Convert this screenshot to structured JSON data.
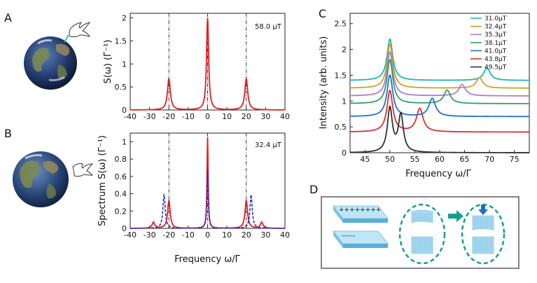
{
  "panels": {
    "A": {
      "letter": "A",
      "field_label": "58.0 μT"
    },
    "B": {
      "letter": "B",
      "field_label": "32.4 μT"
    },
    "C": {
      "letter": "C"
    },
    "D": {
      "letter": "D"
    }
  },
  "chart_data": [
    {
      "panel": "A",
      "type": "line",
      "title": "",
      "xlabel": "",
      "ylabel": "S(ω) (Γ⁻¹)",
      "xlim": [
        -40,
        40
      ],
      "ylim": [
        0,
        2.1
      ],
      "xticks": [
        -40,
        -30,
        -20,
        -10,
        0,
        10,
        20,
        30,
        40
      ],
      "yticks": [
        0,
        0.5,
        1,
        1.5,
        2
      ],
      "ytick_labels": [
        "0",
        "0.5",
        "1",
        "1.5",
        "2"
      ],
      "series": [
        {
          "name": "spectrum",
          "color": "#e02020",
          "peaks": [
            {
              "x0": -20,
              "h": 0.68,
              "w": 0.9
            },
            {
              "x0": 0,
              "h": 2.0,
              "w": 0.65
            },
            {
              "x0": 20,
              "h": 0.68,
              "w": 0.9
            }
          ]
        }
      ],
      "vlines": [
        -20,
        0,
        20
      ]
    },
    {
      "panel": "B",
      "type": "line",
      "title": "",
      "xlabel": "Frequency ω/Γ",
      "ylabel": "Spectrum S(ω) (Γ⁻¹)",
      "xlim": [
        -40,
        40
      ],
      "ylim": [
        0,
        1.1
      ],
      "xticks": [
        -40,
        -30,
        -20,
        -10,
        0,
        10,
        20,
        30,
        40
      ],
      "yticks": [
        0,
        0.2,
        0.4,
        0.6,
        0.8,
        1
      ],
      "ytick_labels": [
        "0",
        "0.2",
        "0.4",
        "0.6",
        "0.8",
        "1"
      ],
      "series": [
        {
          "name": "solid",
          "color": "#e02020",
          "peaks": [
            {
              "x0": -28,
              "h": 0.07,
              "w": 0.8
            },
            {
              "x0": -20,
              "h": 0.32,
              "w": 0.8
            },
            {
              "x0": 0,
              "h": 1.05,
              "w": 0.35
            },
            {
              "x0": 20,
              "h": 0.32,
              "w": 0.8
            },
            {
              "x0": 28,
              "h": 0.07,
              "w": 0.8
            }
          ]
        },
        {
          "name": "dashed",
          "color": "#2030c8",
          "dashed": true,
          "peaks": [
            {
              "x0": -22.5,
              "h": 0.39,
              "w": 0.7
            },
            {
              "x0": 0,
              "h": 0.68,
              "w": 0.4
            },
            {
              "x0": 22.5,
              "h": 0.39,
              "w": 0.7
            }
          ]
        }
      ],
      "vlines": [
        -20,
        0,
        20
      ]
    },
    {
      "panel": "C",
      "type": "line",
      "title": "",
      "xlabel": "Frequency ω/Γ",
      "ylabel": "Intensity (arb. units)",
      "xlim": [
        42,
        78
      ],
      "ylim": [
        0,
        2.7
      ],
      "xticks": [
        45,
        50,
        55,
        60,
        65,
        70,
        75
      ],
      "yticks": [
        0,
        0.5,
        1,
        1.5,
        2,
        2.5
      ],
      "ytick_labels": [
        "0",
        "0.5",
        "1",
        "1.5",
        "2",
        "2.5"
      ],
      "series": [
        {
          "name": "31.0μT",
          "color": "#1fb5b5",
          "offset": 1.4,
          "peaks": [
            {
              "x0": 50,
              "h": 0.8,
              "w": 0.7
            },
            {
              "x0": 69.5,
              "h": 0.24,
              "w": 0.8
            }
          ]
        },
        {
          "name": "32.4μT",
          "color": "#d4a020",
          "offset": 1.25,
          "peaks": [
            {
              "x0": 50,
              "h": 0.85,
              "w": 0.7
            },
            {
              "x0": 68,
              "h": 0.2,
              "w": 0.8
            }
          ]
        },
        {
          "name": "35.3μT",
          "color": "#b07ad0",
          "offset": 1.1,
          "peaks": [
            {
              "x0": 50,
              "h": 0.85,
              "w": 0.7
            },
            {
              "x0": 64.5,
              "h": 0.22,
              "w": 0.8
            }
          ]
        },
        {
          "name": "38.1μT",
          "color": "#30a060",
          "offset": 0.95,
          "peaks": [
            {
              "x0": 50,
              "h": 0.85,
              "w": 0.7
            },
            {
              "x0": 61.5,
              "h": 0.26,
              "w": 0.8
            }
          ]
        },
        {
          "name": "41.0μT",
          "color": "#2070d0",
          "offset": 0.7,
          "peaks": [
            {
              "x0": 50,
              "h": 0.8,
              "w": 0.7
            },
            {
              "x0": 58.5,
              "h": 0.35,
              "w": 0.8
            }
          ]
        },
        {
          "name": "43.8μT",
          "color": "#d83030",
          "offset": 0.4,
          "peaks": [
            {
              "x0": 50,
              "h": 0.8,
              "w": 0.7
            },
            {
              "x0": 56,
              "h": 0.45,
              "w": 0.8
            }
          ]
        },
        {
          "name": "49.5μT",
          "color": "#303030",
          "offset": 0.0,
          "peaks": [
            {
              "x0": 50,
              "h": 0.85,
              "w": 0.6
            },
            {
              "x0": 52.2,
              "h": 0.72,
              "w": 0.6
            }
          ]
        }
      ]
    }
  ],
  "diagram_d": {
    "plate_charges": {
      "top": "++++++++",
      "bottom": "------"
    }
  },
  "colors": {
    "red": "#e02020",
    "blue": "#2030c8",
    "teal": "#14a08a",
    "arrow_blue": "#1a70c8",
    "crystal": "#a8daf0"
  }
}
